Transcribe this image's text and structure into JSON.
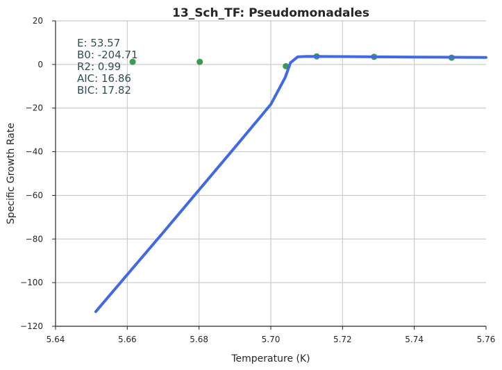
{
  "chart_data": {
    "type": "scatter",
    "title": "13_Sch_TF: Pseudomonadales",
    "xlabel": "Temperature (K)",
    "ylabel": "Specific Growth Rate",
    "xlim": [
      5.64,
      5.76
    ],
    "ylim": [
      -120,
      20
    ],
    "x_ticks": [
      5.64,
      5.66,
      5.68,
      5.7,
      5.72,
      5.74,
      5.76
    ],
    "x_tick_labels": [
      "5.64",
      "5.66",
      "5.68",
      "5.70",
      "5.72",
      "5.74",
      "5.76"
    ],
    "y_ticks": [
      -120,
      -100,
      -80,
      -60,
      -40,
      -20,
      0,
      20
    ],
    "y_tick_labels": [
      "−120",
      "−100",
      "−80",
      "−60",
      "−40",
      "−20",
      "0",
      "20"
    ],
    "grid": true,
    "series": [
      {
        "kind": "points",
        "color": "#3a9a4f",
        "x": [
          5.6615,
          5.6802,
          5.7042,
          5.7128,
          5.7288,
          5.7504
        ],
        "y": [
          1.2,
          1.2,
          -0.8,
          3.7,
          3.5,
          3.1
        ]
      },
      {
        "kind": "line",
        "color": "#4169e1",
        "x": [
          5.6512,
          5.67,
          5.69,
          5.7,
          5.704,
          5.7055,
          5.7075,
          5.71,
          5.72,
          5.74,
          5.76
        ],
        "y": [
          -113.3,
          -77.0,
          -38.0,
          -18.3,
          -6.0,
          0.8,
          3.5,
          3.7,
          3.6,
          3.4,
          3.2
        ]
      }
    ],
    "annotations": {
      "stats": [
        "E:  53.57",
        "B0:  -204.71",
        "R2:  0.99",
        "AIC: 16.86",
        "BIC: 17.82"
      ]
    }
  }
}
